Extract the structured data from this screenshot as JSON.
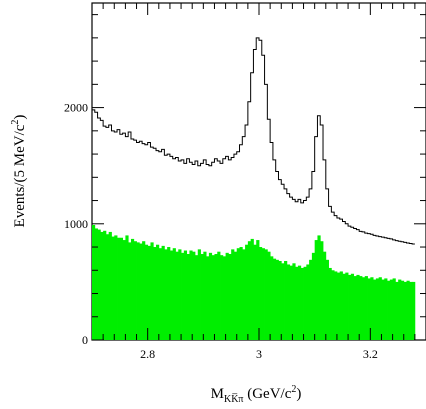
{
  "chart_data": {
    "type": "area",
    "title": "",
    "xlabel": {
      "main": "M",
      "sub": "KK̅π",
      "unit_open": " (GeV/c",
      "unit_sup": "2",
      "unit_close": ")"
    },
    "ylabel": {
      "main": "Events/(5 MeV/c",
      "sup": "2",
      "close": ")"
    },
    "xlim": [
      2.7,
      3.3
    ],
    "ylim": [
      0,
      2900
    ],
    "xticks": [
      2.8,
      3.0,
      3.2
    ],
    "xtick_labels": [
      "2.8",
      "3",
      "3.2"
    ],
    "yticks": [
      0,
      1000,
      2000
    ],
    "ytick_labels": [
      "0",
      "1000",
      "2000"
    ],
    "grid": false,
    "legend": "none",
    "bin_width": 0.005,
    "x_start": 2.7,
    "series": [
      {
        "style": "step",
        "color": "#000000",
        "values": [
          1980,
          1960,
          1910,
          1890,
          1840,
          1830,
          1850,
          1800,
          1790,
          1810,
          1770,
          1780,
          1750,
          1790,
          1730,
          1720,
          1700,
          1710,
          1690,
          1680,
          1700,
          1660,
          1650,
          1630,
          1620,
          1640,
          1590,
          1600,
          1580,
          1560,
          1570,
          1540,
          1550,
          1520,
          1560,
          1530,
          1510,
          1540,
          1500,
          1520,
          1550,
          1510,
          1500,
          1530,
          1560,
          1540,
          1520,
          1560,
          1580,
          1550,
          1570,
          1600,
          1620,
          1680,
          1750,
          1850,
          2050,
          2300,
          2500,
          2600,
          2580,
          2450,
          2200,
          1900,
          1700,
          1550,
          1450,
          1380,
          1340,
          1300,
          1260,
          1230,
          1210,
          1190,
          1210,
          1180,
          1200,
          1230,
          1300,
          1450,
          1750,
          1930,
          1850,
          1550,
          1300,
          1150,
          1100,
          1070,
          1050,
          1040,
          1020,
          1000,
          980,
          970,
          960,
          950,
          935,
          930,
          920,
          915,
          910,
          900,
          895,
          890,
          885,
          880,
          875,
          870,
          862,
          855,
          850,
          845,
          840,
          835,
          830,
          826
        ]
      },
      {
        "style": "filled-step",
        "color": "#00ee00",
        "values": [
          990,
          960,
          950,
          930,
          940,
          910,
          930,
          890,
          900,
          880,
          880,
          860,
          900,
          840,
          870,
          850,
          840,
          830,
          850,
          820,
          810,
          840,
          800,
          820,
          790,
          810,
          780,
          800,
          770,
          790,
          760,
          780,
          750,
          770,
          740,
          770,
          760,
          730,
          780,
          740,
          760,
          720,
          750,
          730,
          740,
          760,
          730,
          720,
          750,
          740,
          780,
          760,
          790,
          800,
          780,
          820,
          850,
          870,
          820,
          860,
          800,
          790,
          780,
          760,
          720,
          700,
          690,
          680,
          660,
          680,
          650,
          640,
          660,
          630,
          640,
          620,
          630,
          650,
          690,
          750,
          860,
          900,
          850,
          760,
          690,
          620,
          600,
          590,
          580,
          590,
          570,
          580,
          560,
          570,
          550,
          560,
          550,
          540,
          550,
          530,
          540,
          520,
          530,
          540,
          520,
          530,
          510,
          520,
          530,
          500,
          520,
          510,
          500,
          510,
          500,
          500
        ]
      }
    ]
  }
}
